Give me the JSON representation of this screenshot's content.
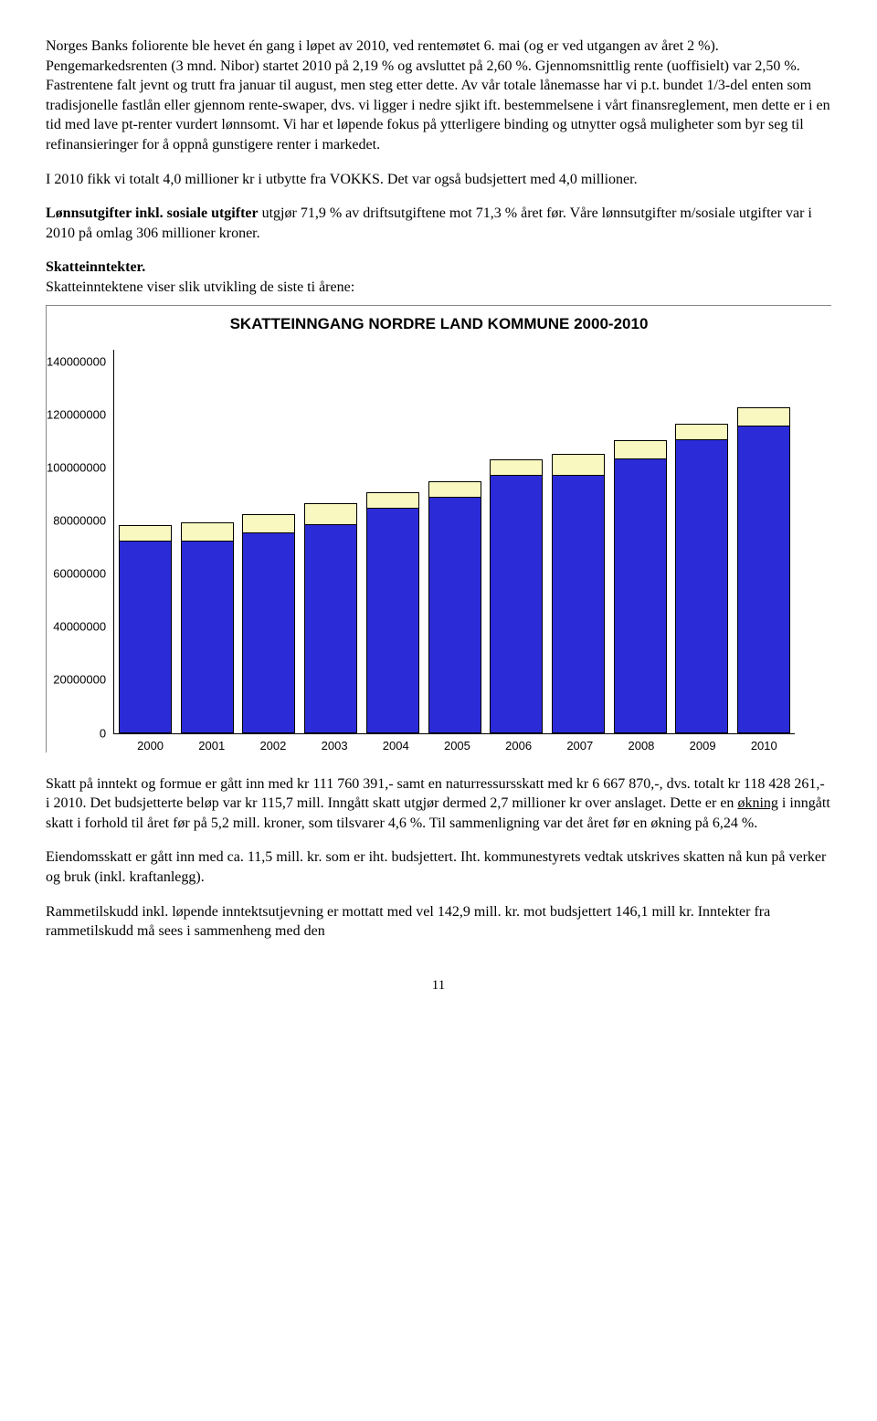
{
  "paragraphs": {
    "p1": "Norges Banks foliorente ble hevet én gang i løpet av 2010, ved rentemøtet 6. mai (og er ved utgangen av året 2 %). Pengemarkedsrenten (3 mnd. Nibor) startet 2010 på 2,19 % og avsluttet på 2,60 %. Gjennomsnittlig rente (uoffisielt) var 2,50 %. Fastrentene falt jevnt og trutt fra januar til august, men steg etter dette. Av vår totale lånemasse har vi p.t. bundet 1/3-del enten som tradisjonelle fastlån eller gjennom rente-swaper, dvs. vi ligger i nedre sjikt ift. bestemmelsene i vårt finansreglement, men dette er i en tid med lave pt-renter vurdert lønnsomt. Vi har et løpende fokus på ytterligere binding og utnytter også muligheter som byr seg til refinansieringer for å oppnå gunstigere renter i markedet.",
    "p2": "I 2010 fikk vi totalt 4,0 millioner kr i utbytte fra VOKKS. Det var også budsjettert med 4,0 millioner.",
    "p3_bold": "Lønnsutgifter inkl. sosiale utgifter",
    "p3_rest": " utgjør 71,9 % av driftsutgiftene mot 71,3 % året før. Våre lønnsutgifter m/sosiale utgifter var i 2010 på omlag 306 millioner kroner.",
    "p4_bold": "Skatteinntekter.",
    "p4_line2": "Skatteinntektene viser slik utvikling de siste ti årene:",
    "p5a": "Skatt på inntekt og formue er gått inn med kr 111 760 391,- samt en naturressursskatt med kr 6 667 870,-, dvs. totalt kr 118 428 261,- i 2010. Det budsjetterte beløp var kr 115,7 mill. Inngått skatt utgjør dermed 2,7 millioner kr over anslaget. Dette er en ",
    "p5_underline": "økning",
    "p5b": " i inngått skatt i forhold til året før på 5,2 mill. kroner, som tilsvarer 4,6 %. Til sammenligning var det året før en økning på 6,24 %.",
    "p6": "Eiendomsskatt er gått inn med ca. 11,5 mill. kr. som er iht. budsjettert. Iht. kommunestyrets vedtak utskrives skatten nå kun på verker og bruk (inkl. kraftanlegg).",
    "p7": "Rammetilskudd inkl. løpende inntektsutjevning er mottatt med vel 142,9 mill. kr. mot budsjettert 146,1 mill kr. Inntekter fra rammetilskudd må sees i sammenheng med den"
  },
  "chart": {
    "title": "SKATTEINNGANG NORDRE LAND KOMMUNE 2000-2010",
    "type": "stacked-bar",
    "y_max": 140000000,
    "y_ticks": [
      "140000000",
      "120000000",
      "100000000",
      "80000000",
      "60000000",
      "40000000",
      "20000000",
      "0"
    ],
    "categories": [
      "2000",
      "2001",
      "2002",
      "2003",
      "2004",
      "2005",
      "2006",
      "2007",
      "2008",
      "2009",
      "2010"
    ],
    "series_bottom_color": "#2b2bd8",
    "series_top_color": "#f8f8c0",
    "bars": [
      {
        "bottom": 70000000,
        "top": 6000000
      },
      {
        "bottom": 70000000,
        "top": 7000000
      },
      {
        "bottom": 73000000,
        "top": 7000000
      },
      {
        "bottom": 76000000,
        "top": 8000000
      },
      {
        "bottom": 82000000,
        "top": 6000000
      },
      {
        "bottom": 86000000,
        "top": 6000000
      },
      {
        "bottom": 94000000,
        "top": 6000000
      },
      {
        "bottom": 94000000,
        "top": 8000000
      },
      {
        "bottom": 100000000,
        "top": 7000000
      },
      {
        "bottom": 107000000,
        "top": 6000000
      },
      {
        "bottom": 112000000,
        "top": 7000000
      }
    ]
  },
  "page_number": "11"
}
